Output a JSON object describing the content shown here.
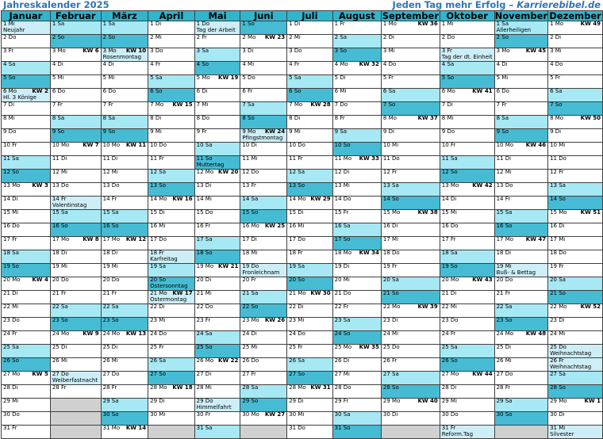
{
  "header": {
    "title": "Jahreskalender 2025",
    "tagline": "Jeden Tag mehr Erfolg – ",
    "brand": "Karrierebibel.de"
  },
  "colors": {
    "header_blue": "#2e75b6",
    "month_header": "#31b5cc",
    "saturday": "#a6e8f4",
    "sunday": "#45bcd3",
    "holiday": "#cdeef6",
    "empty": "#d0d0d0"
  },
  "months": [
    {
      "name": "Januar",
      "days": 31,
      "start": 2
    },
    {
      "name": "Februar",
      "days": 28,
      "start": 5
    },
    {
      "name": "März",
      "days": 31,
      "start": 5
    },
    {
      "name": "April",
      "days": 30,
      "start": 1
    },
    {
      "name": "Mai",
      "days": 31,
      "start": 3
    },
    {
      "name": "Juni",
      "days": 30,
      "start": 6
    },
    {
      "name": "Juli",
      "days": 31,
      "start": 1
    },
    {
      "name": "August",
      "days": 31,
      "start": 4
    },
    {
      "name": "September",
      "days": 30,
      "start": 0
    },
    {
      "name": "Oktober",
      "days": 31,
      "start": 2
    },
    {
      "name": "November",
      "days": 30,
      "start": 5
    },
    {
      "name": "Dezember",
      "days": 31,
      "start": 0
    }
  ],
  "weekday_abbr": [
    "Mo",
    "Di",
    "Mi",
    "Do",
    "Fr",
    "Sa",
    "So"
  ],
  "week_label": "KW",
  "holidays": [
    {
      "month": 0,
      "day": 1,
      "name": "Neujahr"
    },
    {
      "month": 0,
      "day": 6,
      "name": "Hl. 3 Könige"
    },
    {
      "month": 1,
      "day": 14,
      "name": "Valentinstag"
    },
    {
      "month": 1,
      "day": 27,
      "name": "Weiberfastnacht"
    },
    {
      "month": 2,
      "day": 3,
      "name": "Rosenmontag"
    },
    {
      "month": 3,
      "day": 18,
      "name": "Karfreitag"
    },
    {
      "month": 3,
      "day": 20,
      "name": "Ostersonntag"
    },
    {
      "month": 3,
      "day": 21,
      "name": "Ostermontag"
    },
    {
      "month": 4,
      "day": 1,
      "name": "Tag der Arbeit"
    },
    {
      "month": 4,
      "day": 11,
      "name": "Muttertag"
    },
    {
      "month": 4,
      "day": 29,
      "name": "Himmelfahrt"
    },
    {
      "month": 5,
      "day": 9,
      "name": "Pfingstmontag"
    },
    {
      "month": 5,
      "day": 19,
      "name": "Fronleichnam"
    },
    {
      "month": 9,
      "day": 3,
      "name": "Tag der dt. Einheit"
    },
    {
      "month": 9,
      "day": 31,
      "name": "Reform.Tag"
    },
    {
      "month": 10,
      "day": 1,
      "name": "Allerheiligen"
    },
    {
      "month": 10,
      "day": 19,
      "name": "Buß- & Bettag"
    },
    {
      "month": 11,
      "day": 25,
      "name": "Weihnachtstag"
    },
    {
      "month": 11,
      "day": 26,
      "name": "Weihnachtstag"
    },
    {
      "month": 11,
      "day": 31,
      "name": "Silvester"
    }
  ],
  "week_numbers": [
    {
      "month": 0,
      "day": 6,
      "kw": 2
    },
    {
      "month": 0,
      "day": 13,
      "kw": 3
    },
    {
      "month": 0,
      "day": 20,
      "kw": 4
    },
    {
      "month": 0,
      "day": 27,
      "kw": 5
    },
    {
      "month": 1,
      "day": 3,
      "kw": 6
    },
    {
      "month": 1,
      "day": 10,
      "kw": 7
    },
    {
      "month": 1,
      "day": 17,
      "kw": 8
    },
    {
      "month": 1,
      "day": 24,
      "kw": 9
    },
    {
      "month": 2,
      "day": 3,
      "kw": 10
    },
    {
      "month": 2,
      "day": 10,
      "kw": 11
    },
    {
      "month": 2,
      "day": 17,
      "kw": 12
    },
    {
      "month": 2,
      "day": 24,
      "kw": 13
    },
    {
      "month": 2,
      "day": 31,
      "kw": 14
    },
    {
      "month": 3,
      "day": 7,
      "kw": 15
    },
    {
      "month": 3,
      "day": 14,
      "kw": 16
    },
    {
      "month": 3,
      "day": 21,
      "kw": 17
    },
    {
      "month": 3,
      "day": 28,
      "kw": 18
    },
    {
      "month": 4,
      "day": 5,
      "kw": 19
    },
    {
      "month": 4,
      "day": 12,
      "kw": 20
    },
    {
      "month": 4,
      "day": 19,
      "kw": 21
    },
    {
      "month": 4,
      "day": 26,
      "kw": 22
    },
    {
      "month": 5,
      "day": 2,
      "kw": 23
    },
    {
      "month": 5,
      "day": 9,
      "kw": 24
    },
    {
      "month": 5,
      "day": 16,
      "kw": 25
    },
    {
      "month": 5,
      "day": 23,
      "kw": 26
    },
    {
      "month": 5,
      "day": 30,
      "kw": 27
    },
    {
      "month": 6,
      "day": 7,
      "kw": 28
    },
    {
      "month": 6,
      "day": 14,
      "kw": 29
    },
    {
      "month": 6,
      "day": 21,
      "kw": 30
    },
    {
      "month": 6,
      "day": 28,
      "kw": 31
    },
    {
      "month": 7,
      "day": 4,
      "kw": 32
    },
    {
      "month": 7,
      "day": 11,
      "kw": 33
    },
    {
      "month": 7,
      "day": 18,
      "kw": 34
    },
    {
      "month": 7,
      "day": 25,
      "kw": 35
    },
    {
      "month": 8,
      "day": 1,
      "kw": 36
    },
    {
      "month": 8,
      "day": 8,
      "kw": 37
    },
    {
      "month": 8,
      "day": 15,
      "kw": 38
    },
    {
      "month": 8,
      "day": 22,
      "kw": 39
    },
    {
      "month": 8,
      "day": 29,
      "kw": 40
    },
    {
      "month": 9,
      "day": 6,
      "kw": 41
    },
    {
      "month": 9,
      "day": 13,
      "kw": 42
    },
    {
      "month": 9,
      "day": 20,
      "kw": 43
    },
    {
      "month": 9,
      "day": 27,
      "kw": 44
    },
    {
      "month": 10,
      "day": 3,
      "kw": 45
    },
    {
      "month": 10,
      "day": 10,
      "kw": 46
    },
    {
      "month": 10,
      "day": 17,
      "kw": 47
    },
    {
      "month": 10,
      "day": 24,
      "kw": 48
    },
    {
      "month": 11,
      "day": 1,
      "kw": 49
    },
    {
      "month": 11,
      "day": 8,
      "kw": 50
    },
    {
      "month": 11,
      "day": 15,
      "kw": 51
    },
    {
      "month": 11,
      "day": 22,
      "kw": 52
    },
    {
      "month": 11,
      "day": 29,
      "kw": 1
    }
  ]
}
